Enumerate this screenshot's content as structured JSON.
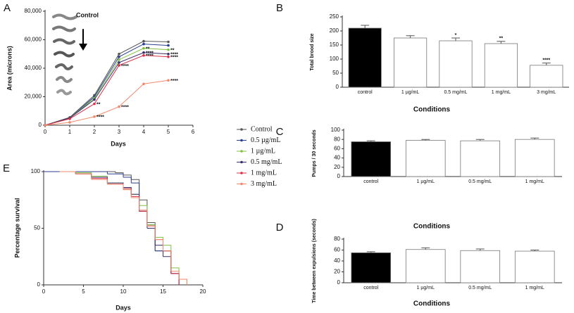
{
  "chart_data": [
    {
      "panel": "A",
      "type": "line",
      "xlabel": "Days",
      "ylabel": "Area (microns)",
      "inset_label": "Control",
      "x": [
        0,
        1,
        2,
        3,
        4,
        5
      ],
      "xlim": [
        0,
        6
      ],
      "xticks": [
        0,
        1,
        2,
        3,
        4,
        5,
        6
      ],
      "ylim": [
        0,
        80000
      ],
      "yticks": [
        0,
        {
          "value": 20000,
          "label": "20,000"
        },
        {
          "value": 40000,
          "label": "40,000"
        },
        {
          "value": 60000,
          "label": "60,000"
        },
        {
          "value": 80000,
          "label": "80,000"
        }
      ],
      "series": [
        {
          "name": "Control",
          "color": "#555555",
          "values": [
            0,
            5500,
            21000,
            50000,
            59000,
            58500
          ]
        },
        {
          "name": "0.5 µg/mL",
          "color": "#2b3f8f",
          "values": [
            0,
            5000,
            20000,
            48000,
            57000,
            56000
          ]
        },
        {
          "name": "1 µg/mL",
          "color": "#7dc242",
          "values": [
            0,
            5000,
            19000,
            46000,
            54000,
            53000
          ]
        },
        {
          "name": "0.5 mg/mL",
          "color": "#3b2d6b",
          "values": [
            0,
            5000,
            18000,
            44000,
            51000,
            50000
          ]
        },
        {
          "name": "1 mg/mL",
          "color": "#d9304a",
          "values": [
            0,
            4500,
            15000,
            42000,
            49000,
            48000
          ]
        },
        {
          "name": "3 mg/mL",
          "color": "#f08a6c",
          "values": [
            0,
            2000,
            6000,
            13000,
            29000,
            31500
          ]
        }
      ],
      "annotations": [
        {
          "series": 4,
          "index": 2,
          "text": "**"
        },
        {
          "series": 5,
          "index": 2,
          "text": "****"
        },
        {
          "series": 4,
          "index": 3,
          "text": "****"
        },
        {
          "series": 5,
          "index": 3,
          "text": "****"
        },
        {
          "series": 2,
          "index": 4,
          "text": "**"
        },
        {
          "series": 3,
          "index": 4,
          "text": "****"
        },
        {
          "series": 4,
          "index": 4,
          "text": "****"
        },
        {
          "series": 2,
          "index": 5,
          "text": "**"
        },
        {
          "series": 3,
          "index": 5,
          "text": "****"
        },
        {
          "series": 4,
          "index": 5,
          "text": "****"
        },
        {
          "series": 5,
          "index": 5,
          "text": "****"
        }
      ]
    },
    {
      "panel": "B",
      "type": "bar",
      "xlabel": "Conditions",
      "ylabel": "Total brood size",
      "categories": [
        "control",
        "1 µg/mL",
        "0.5 mg/mL",
        "1 mg/mL",
        "3 mg/mL"
      ],
      "values": [
        210,
        175,
        165,
        155,
        78
      ],
      "errors": [
        10,
        8,
        10,
        8,
        8
      ],
      "colors": [
        "#000000",
        "#ffffff",
        "#ffffff",
        "#ffffff",
        "#ffffff"
      ],
      "edgecolor": "#777777",
      "ylim": [
        0,
        250
      ],
      "yticks": [
        0,
        50,
        100,
        150,
        200,
        250
      ],
      "annotations": [
        {
          "index": 2,
          "text": "*"
        },
        {
          "index": 3,
          "text": "**"
        },
        {
          "index": 4,
          "text": "****"
        }
      ]
    },
    {
      "panel": "C",
      "type": "bar",
      "xlabel": "Conditions",
      "ylabel": "Pumps / 30 seconds",
      "categories": [
        "control",
        "1 µg/mL",
        "0.5 mg/mL",
        "1 mg/mL"
      ],
      "values": [
        75,
        78,
        77,
        80
      ],
      "errors": [
        2,
        2,
        3,
        3
      ],
      "colors": [
        "#000000",
        "#ffffff",
        "#ffffff",
        "#ffffff"
      ],
      "edgecolor": "#777777",
      "ylim": [
        0,
        100
      ],
      "yticks": [
        0,
        20,
        40,
        60,
        80,
        100
      ]
    },
    {
      "panel": "D",
      "type": "bar",
      "xlabel": "Conditions",
      "ylabel": "Time between expulsions (seconds)",
      "categories": [
        "control",
        "1 µg/mL",
        "0.5 mg/mL",
        "1 mg/mL"
      ],
      "values": [
        55,
        61,
        59,
        58
      ],
      "errors": [
        2,
        3,
        3,
        2
      ],
      "colors": [
        "#000000",
        "#ffffff",
        "#ffffff",
        "#ffffff"
      ],
      "edgecolor": "#777777",
      "ylim": [
        0,
        80
      ],
      "yticks": [
        0,
        20,
        40,
        60,
        80
      ]
    },
    {
      "panel": "E",
      "type": "step",
      "xlabel": "Days",
      "ylabel": "Percentage survival",
      "xlim": [
        0,
        20
      ],
      "xticks": [
        0,
        5,
        10,
        15,
        20
      ],
      "ylim": [
        0,
        100
      ],
      "yticks": [
        0,
        50,
        100
      ],
      "series": [
        {
          "color": "#555555",
          "x": [
            0,
            8,
            9,
            10,
            11,
            12,
            13,
            14,
            15,
            16,
            17
          ],
          "values": [
            100,
            100,
            99,
            97,
            93,
            75,
            55,
            30,
            30,
            10,
            0
          ]
        },
        {
          "color": "#2b3f8f",
          "x": [
            0,
            6,
            8,
            10,
            11,
            12,
            13,
            14,
            15,
            16,
            17
          ],
          "values": [
            100,
            100,
            98,
            95,
            90,
            65,
            53,
            30,
            30,
            10,
            0
          ]
        },
        {
          "color": "#7dc242",
          "x": [
            2,
            4,
            6,
            8,
            10,
            11,
            12,
            13,
            14,
            15,
            16,
            17,
            18
          ],
          "values": [
            100,
            99,
            96,
            90,
            85,
            80,
            70,
            53,
            42,
            35,
            15,
            5,
            0
          ]
        },
        {
          "color": "#3b2d6b",
          "x": [
            2,
            4,
            6,
            8,
            10,
            11,
            12,
            13,
            14,
            15,
            16,
            17
          ],
          "values": [
            100,
            98,
            95,
            90,
            86,
            80,
            65,
            50,
            35,
            25,
            10,
            0
          ]
        },
        {
          "color": "#d9304a",
          "x": [
            2,
            4,
            6,
            8,
            10,
            11,
            12,
            13,
            14,
            15,
            16,
            17
          ],
          "values": [
            100,
            98,
            94,
            89,
            85,
            78,
            65,
            52,
            40,
            30,
            10,
            0
          ]
        },
        {
          "color": "#f08a6c",
          "x": [
            2,
            4,
            6,
            8,
            10,
            11,
            12,
            13,
            14,
            15,
            16,
            17,
            18
          ],
          "values": [
            100,
            98,
            93,
            89,
            84,
            77,
            66,
            52,
            40,
            30,
            12,
            5,
            0
          ]
        }
      ]
    }
  ]
}
